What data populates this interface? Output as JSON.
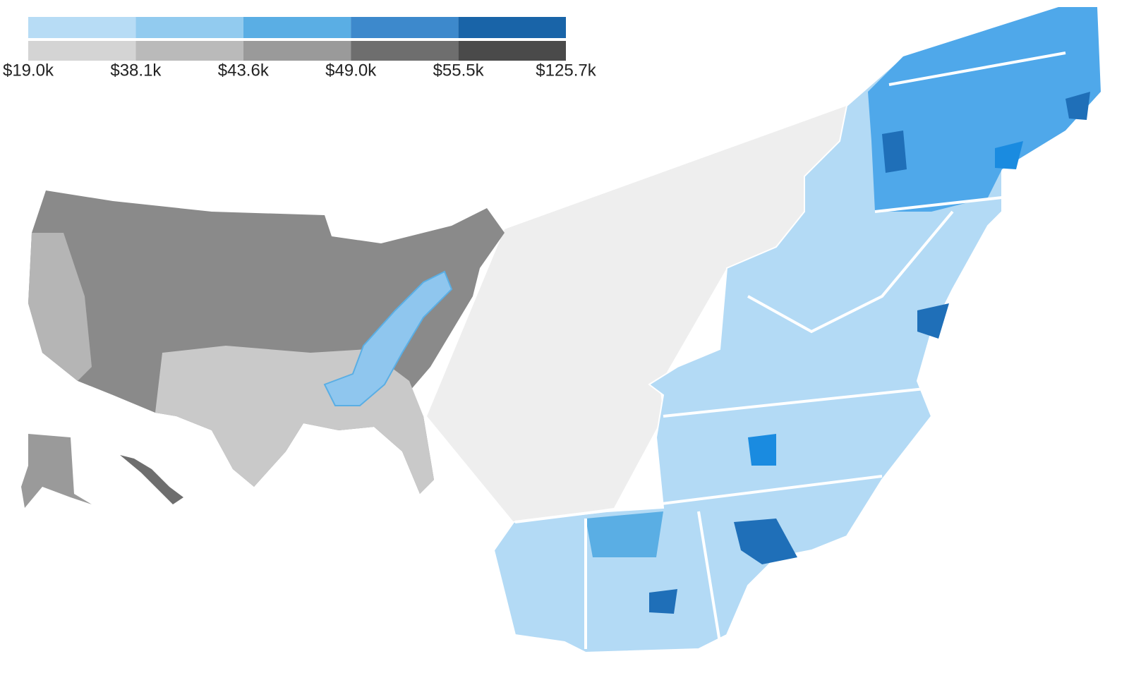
{
  "legend": {
    "scales": [
      {
        "colors": [
          "#b7dcf5",
          "#92cbef",
          "#5aaee4",
          "#3d89cc",
          "#1964a8"
        ]
      },
      {
        "colors": [
          "#d4d4d4",
          "#bababa",
          "#9a9a9a",
          "#6e6e6e",
          "#4a4a4a"
        ]
      }
    ],
    "ticks": [
      "$19.0k",
      "$38.1k",
      "$43.6k",
      "$49.0k",
      "$55.5k",
      "$125.7k"
    ]
  }
}
